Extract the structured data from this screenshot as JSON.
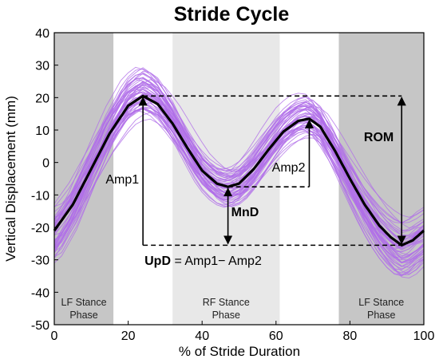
{
  "chart_data": {
    "type": "line",
    "title": "Stride Cycle",
    "xlabel": "% of Stride Duration",
    "ylabel": "Vertical Displacement (mm)",
    "xlim": [
      0,
      100
    ],
    "ylim": [
      -50,
      40
    ],
    "xticks": [
      0,
      20,
      40,
      60,
      80,
      100
    ],
    "yticks": [
      -50,
      -40,
      -30,
      -20,
      -10,
      0,
      10,
      20,
      30,
      40
    ],
    "grid": false,
    "phases": [
      {
        "label1": "LF Stance",
        "label2": "Phase",
        "x0": 0,
        "x1": 16,
        "color": "#c6c6c6"
      },
      {
        "label1": "RF Stance",
        "label2": "Phase",
        "x0": 32,
        "x1": 61,
        "color": "#e8e8e8"
      },
      {
        "label1": "LF Stance",
        "label2": "Phase",
        "x0": 77,
        "x1": 100,
        "color": "#c6c6c6"
      }
    ],
    "series": [
      {
        "style": "mean",
        "color": "#000000",
        "x": [
          0,
          5,
          10,
          15,
          20,
          24,
          28,
          32,
          36,
          40,
          44,
          47,
          50,
          54,
          58,
          62,
          66,
          69,
          72,
          76,
          80,
          84,
          88,
          91,
          94,
          97,
          100
        ],
        "values": [
          -21,
          -13,
          -2,
          9,
          17.5,
          20.5,
          18,
          12,
          4.5,
          -2.5,
          -6.5,
          -7.5,
          -6.5,
          -2,
          4,
          9.5,
          12.8,
          13.5,
          11,
          3.5,
          -5,
          -13,
          -19.5,
          -23,
          -25.5,
          -24,
          -21
        ]
      }
    ],
    "trials": {
      "count": 55,
      "color": "#b06ee8",
      "spread": 5
    },
    "annotations": {
      "amp1": "Amp1",
      "amp2": "Amp2",
      "mnd": "MnD",
      "rom": "ROM",
      "upd_bold": "UpD",
      "upd_rest": " = Amp1− Amp2"
    },
    "annotation_points": {
      "peak1": [
        24,
        20.5
      ],
      "min": [
        47,
        -7.5
      ],
      "peak2": [
        69,
        13.5
      ],
      "trough": [
        94,
        -25.5
      ]
    }
  }
}
